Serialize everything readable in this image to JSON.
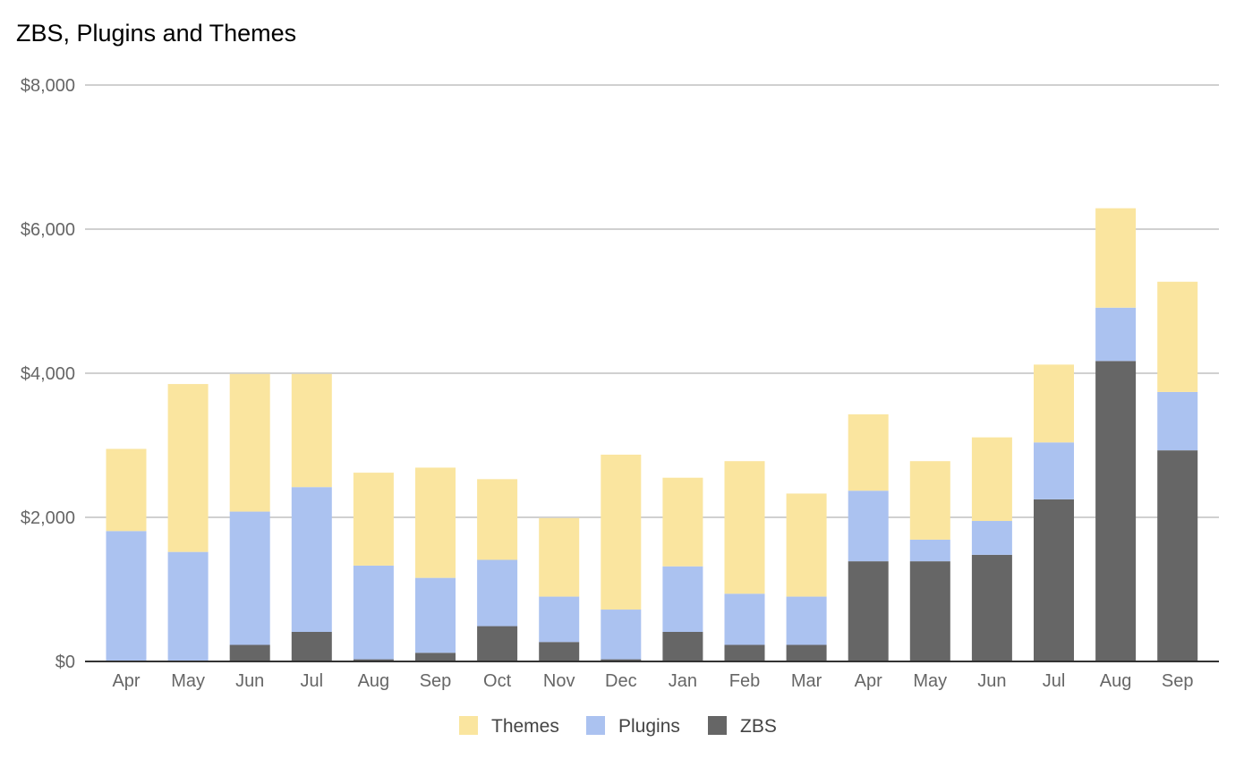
{
  "chart_data": {
    "type": "bar",
    "stacked": true,
    "title": "ZBS, Plugins and Themes",
    "xlabel": "",
    "ylabel": "",
    "ylim": [
      0,
      8000
    ],
    "y_ticks": [
      0,
      2000,
      4000,
      6000,
      8000
    ],
    "y_tick_labels": [
      "$0",
      "$2,000",
      "$4,000",
      "$6,000",
      "$8,000"
    ],
    "grid": true,
    "legend_position": "bottom",
    "categories": [
      "Apr",
      "May",
      "Jun",
      "Jul",
      "Aug",
      "Sep",
      "Oct",
      "Nov",
      "Dec",
      "Jan",
      "Feb",
      "Mar",
      "Apr",
      "May",
      "Jun",
      "Jul",
      "Aug",
      "Sep"
    ],
    "series": [
      {
        "name": "ZBS",
        "color": "#666666",
        "values": [
          0,
          0,
          230,
          410,
          30,
          120,
          490,
          270,
          30,
          410,
          230,
          230,
          1390,
          1390,
          1480,
          2250,
          4170,
          2930
        ]
      },
      {
        "name": "Plugins",
        "color": "#abc2f0",
        "values": [
          1810,
          1520,
          1850,
          2010,
          1300,
          1040,
          920,
          630,
          690,
          910,
          710,
          670,
          980,
          300,
          470,
          790,
          740,
          810
        ]
      },
      {
        "name": "Themes",
        "color": "#fae59f",
        "values": [
          1140,
          2330,
          1910,
          1570,
          1290,
          1530,
          1120,
          1090,
          2150,
          1230,
          1840,
          1430,
          1060,
          1090,
          1160,
          1080,
          1380,
          1530
        ]
      }
    ],
    "legend": [
      "Themes",
      "Plugins",
      "ZBS"
    ]
  }
}
